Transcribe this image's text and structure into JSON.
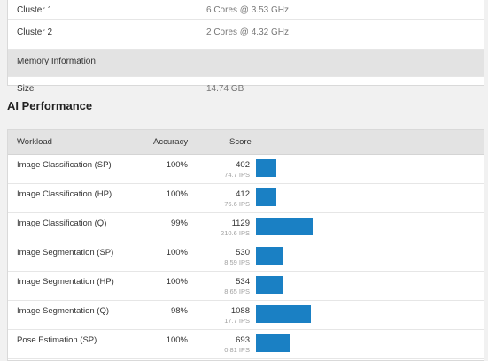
{
  "system_info": {
    "rows": [
      {
        "label": "Cluster 1",
        "value": "6 Cores @ 3.53 GHz"
      },
      {
        "label": "Cluster 2",
        "value": "2 Cores @ 4.32 GHz"
      }
    ],
    "memory_section": "Memory Information",
    "memory_rows": [
      {
        "label": "Size",
        "value": "14.74 GB"
      }
    ]
  },
  "ai_performance": {
    "title": "AI Performance",
    "headers": {
      "workload": "Workload",
      "accuracy": "Accuracy",
      "score": "Score"
    },
    "bar_color": "#1a80c4",
    "bar_scale_max": 1129,
    "rows": [
      {
        "workload": "Image Classification (SP)",
        "accuracy": "100%",
        "score": "402",
        "ips": "74.7 IPS",
        "value": 402
      },
      {
        "workload": "Image Classification (HP)",
        "accuracy": "100%",
        "score": "412",
        "ips": "76.6 IPS",
        "value": 412
      },
      {
        "workload": "Image Classification (Q)",
        "accuracy": "99%",
        "score": "1129",
        "ips": "210.6 IPS",
        "value": 1129
      },
      {
        "workload": "Image Segmentation (SP)",
        "accuracy": "100%",
        "score": "530",
        "ips": "8.59 IPS",
        "value": 530
      },
      {
        "workload": "Image Segmentation (HP)",
        "accuracy": "100%",
        "score": "534",
        "ips": "8.65 IPS",
        "value": 534
      },
      {
        "workload": "Image Segmentation (Q)",
        "accuracy": "98%",
        "score": "1088",
        "ips": "17.7 IPS",
        "value": 1088
      },
      {
        "workload": "Pose Estimation (SP)",
        "accuracy": "100%",
        "score": "693",
        "ips": "0.81 IPS",
        "value": 693
      }
    ]
  }
}
